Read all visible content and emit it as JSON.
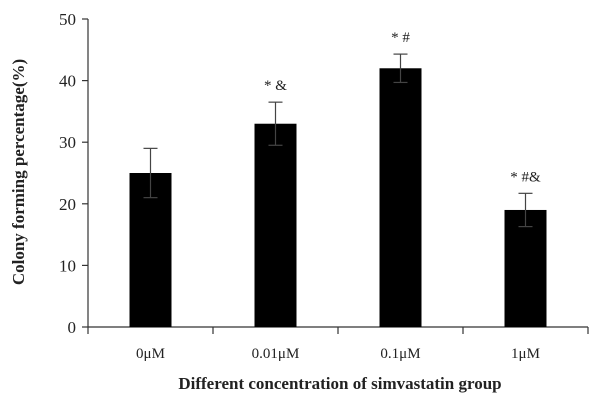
{
  "chart_data": {
    "type": "bar",
    "categories": [
      "0μM",
      "0.01μM",
      "0.1μM",
      "1μM"
    ],
    "values": [
      25,
      33,
      42,
      19
    ],
    "errors": [
      4,
      3.5,
      2.3,
      2.7
    ],
    "annotations": [
      "",
      "* &",
      "* #",
      "* #&"
    ],
    "title": "",
    "xlabel": "Different concentration of simvastatin group",
    "ylabel": "Colony forming percentage(%)",
    "ylim": [
      0,
      50
    ],
    "yticks": [
      0,
      10,
      20,
      30,
      40,
      50
    ],
    "bar_color": "#000000",
    "grid": false,
    "legend": "none"
  }
}
